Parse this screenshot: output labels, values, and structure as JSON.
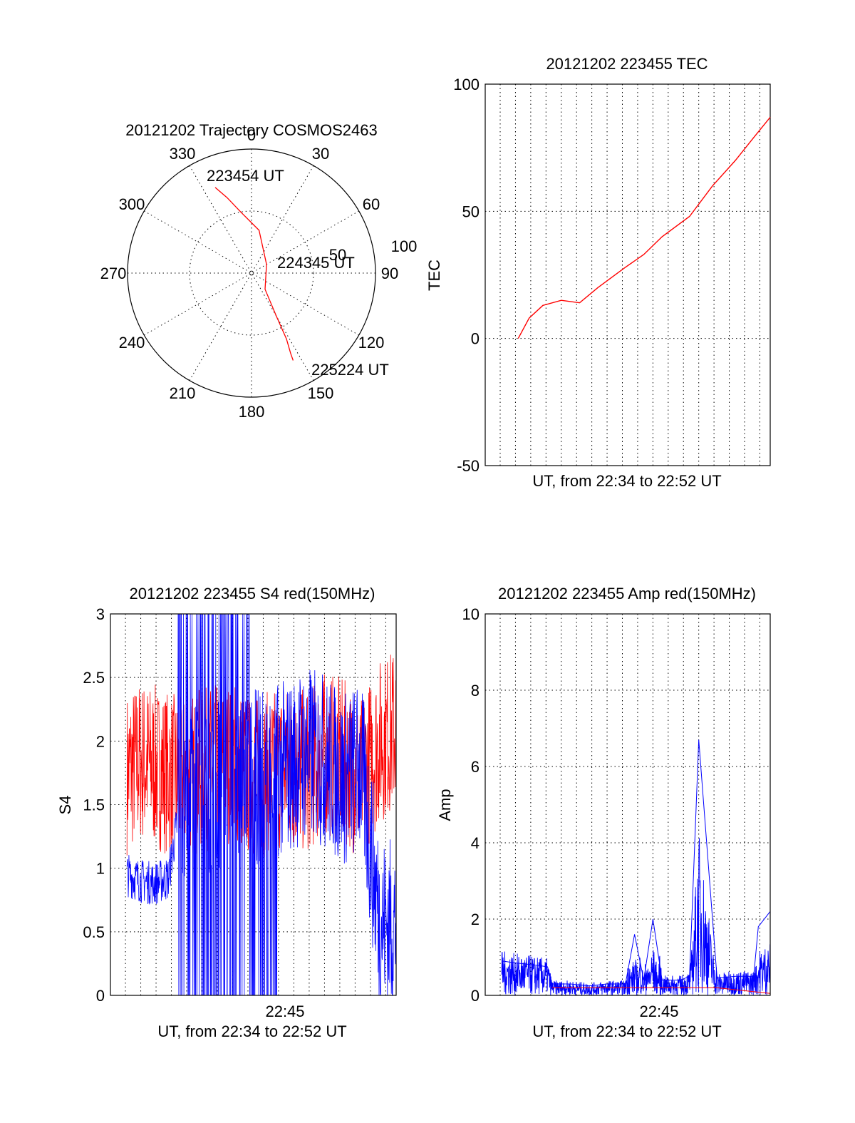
{
  "chart_data": [
    {
      "type": "polar",
      "title": "20121202 Trajectory COSMOS2463",
      "angle_labels": [
        "0",
        "30",
        "60",
        "90",
        "120",
        "150",
        "180",
        "210",
        "240",
        "270",
        "300",
        "330"
      ],
      "radial_labels": [
        "50",
        "100"
      ],
      "rlim": [
        0,
        100
      ],
      "grid": true,
      "series": [
        {
          "color": "#ff0000",
          "points": [
            [
              337,
              75
            ],
            [
              342,
              64
            ],
            [
              350,
              50
            ],
            [
              10,
              35
            ],
            [
              60,
              14
            ],
            [
              140,
              17
            ],
            [
              150,
              40
            ],
            [
              152,
              60
            ],
            [
              154,
              72
            ],
            [
              154.5,
              78
            ]
          ]
        }
      ],
      "annotations": [
        {
          "text": "223454 UT",
          "angle": 337,
          "r": 75
        },
        {
          "text": "224345 UT",
          "angle": 80,
          "r": 22
        },
        {
          "text": "225224 UT",
          "angle": 154,
          "r": 78
        }
      ]
    },
    {
      "type": "line",
      "title": "20121202 223455 TEC",
      "xlabel": "UT, from 22:34 to 22:52 UT",
      "ylabel": "TEC",
      "xlim": [
        22.567,
        22.878
      ],
      "ylim": [
        -50,
        100
      ],
      "yticks": [
        "100",
        "50",
        "0",
        "-50"
      ],
      "grid": true,
      "series": [
        {
          "color": "#ff0000",
          "x": [
            22.603,
            22.615,
            22.63,
            22.65,
            22.67,
            22.69,
            22.72,
            22.74,
            22.76,
            22.79,
            22.815,
            22.84,
            22.86,
            22.878
          ],
          "y": [
            0,
            8,
            13,
            15,
            14,
            20,
            28,
            33,
            40,
            48,
            60,
            70,
            79,
            87
          ]
        }
      ]
    },
    {
      "type": "line",
      "title": "20121202 223455 S4 red(150MHz)",
      "xlabel": "UT, from 22:34 to 22:52 UT",
      "ylabel": "S4",
      "xlim": [
        22.567,
        22.878
      ],
      "ylim": [
        0,
        3
      ],
      "yticks": [
        "3",
        "2.5",
        "2",
        "1.5",
        "1",
        "0.5",
        "0"
      ],
      "xticks": [
        {
          "value": 22.75,
          "label": "22:45"
        }
      ],
      "grid": true,
      "series": [
        {
          "color": "#ff0000",
          "x": [
            22.585,
            22.6,
            22.615,
            22.63,
            22.645,
            22.66,
            22.68,
            22.7,
            22.72,
            22.74,
            22.76,
            22.78,
            22.8,
            22.82,
            22.84,
            22.86,
            22.878
          ],
          "y": [
            1.75,
            1.85,
            1.8,
            1.75,
            1.7,
            1.75,
            1.8,
            1.85,
            1.7,
            1.75,
            1.8,
            1.75,
            1.9,
            1.85,
            1.7,
            2.0,
            2.1
          ]
        },
        {
          "color": "#0000ff",
          "x": [
            22.585,
            22.6,
            22.615,
            22.63,
            22.645,
            22.66,
            22.68,
            22.7,
            22.72,
            22.74,
            22.76,
            22.78,
            22.8,
            22.82,
            22.84,
            22.86,
            22.878
          ],
          "y": [
            0.95,
            0.9,
            0.88,
            0.92,
            1.6,
            1.7,
            1.65,
            1.8,
            1.7,
            1.75,
            1.8,
            1.9,
            1.85,
            1.7,
            1.8,
            0.58,
            0.55
          ]
        }
      ]
    },
    {
      "type": "line",
      "title": "20121202 223455 Amp red(150MHz)",
      "xlabel": "UT, from 22:34 to 22:52 UT",
      "ylabel": "Amp",
      "xlim": [
        22.567,
        22.878
      ],
      "ylim": [
        0,
        10
      ],
      "yticks": [
        "10",
        "8",
        "6",
        "4",
        "2",
        "0"
      ],
      "xticks": [
        {
          "value": 22.75,
          "label": "22:45"
        }
      ],
      "grid": true,
      "series": [
        {
          "color": "#0000ff",
          "x": [
            22.585,
            22.6,
            22.62,
            22.635,
            22.64,
            22.66,
            22.68,
            22.7,
            22.72,
            22.73,
            22.74,
            22.75,
            22.76,
            22.78,
            22.79,
            22.8,
            22.82,
            22.84,
            22.86,
            22.865,
            22.878
          ],
          "y": [
            0.9,
            0.85,
            0.8,
            0.75,
            0.3,
            0.3,
            0.25,
            0.3,
            0.3,
            1.6,
            0.4,
            2.0,
            0.4,
            0.4,
            0.5,
            6.7,
            0.45,
            0.5,
            0.5,
            1.8,
            2.2
          ]
        },
        {
          "color": "#ff0000",
          "x": [
            22.64,
            22.7,
            22.76,
            22.82,
            22.878
          ],
          "y": [
            0.2,
            0.2,
            0.2,
            0.2,
            0.05
          ]
        }
      ]
    }
  ]
}
